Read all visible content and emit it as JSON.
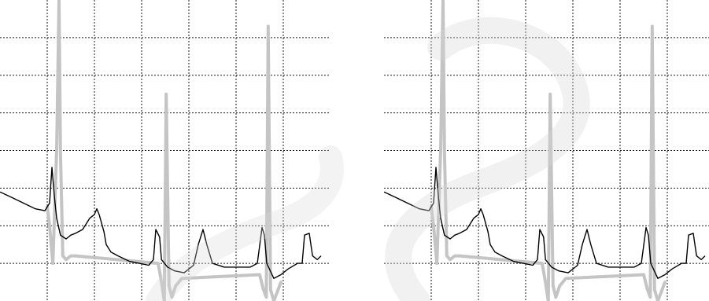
{
  "chart_data": [
    {
      "type": "line",
      "title": "",
      "xlabel": "",
      "ylabel": "",
      "grid": true,
      "grid_style": "dashed",
      "xlim": [
        0,
        7
      ],
      "ylim": [
        0,
        8
      ],
      "series": [
        {
          "color": "#000000",
          "x": [
            0,
            0.25,
            0.5,
            0.75,
            0.95,
            1.05,
            1.1,
            1.15,
            1.2,
            1.28,
            1.4,
            1.5,
            1.6,
            1.75,
            1.9,
            2.0,
            2.05,
            2.1,
            2.2,
            2.25,
            2.35,
            2.5,
            2.75,
            2.95,
            3.15,
            3.25,
            3.3,
            3.38,
            3.42,
            3.55,
            3.7,
            3.9,
            4.1,
            4.2,
            4.3,
            4.38,
            4.5,
            4.75,
            5.0,
            5.3,
            5.45,
            5.55,
            5.6,
            5.65,
            5.8,
            5.95,
            6.1,
            6.3,
            6.4,
            6.45,
            6.55,
            6.62,
            6.72,
            6.8
          ],
          "y": [
            2.9,
            2.75,
            2.6,
            2.45,
            2.4,
            2.6,
            3.55,
            2.8,
            2.2,
            1.75,
            1.65,
            1.75,
            1.8,
            1.9,
            2.2,
            2.3,
            2.45,
            2.3,
            1.85,
            1.5,
            1.3,
            1.2,
            1.05,
            1.0,
            0.95,
            1.1,
            1.9,
            1.7,
            1.1,
            0.9,
            0.8,
            0.75,
            0.95,
            1.5,
            1.9,
            1.5,
            1.0,
            0.9,
            0.9,
            0.9,
            1.0,
            1.95,
            1.75,
            1.0,
            0.6,
            0.7,
            0.85,
            1.0,
            1.0,
            1.75,
            1.8,
            1.2,
            1.1,
            1.2
          ]
        },
        {
          "color": "#c4c4c4",
          "x": [
            1.0,
            1.05,
            1.12,
            1.2,
            1.25,
            1.28,
            1.33,
            1.4,
            1.5,
            1.6,
            3.35,
            3.42,
            3.48,
            3.52,
            3.58,
            3.64,
            3.72,
            3.85,
            5.5,
            5.58,
            5.64,
            5.68,
            5.73,
            5.8,
            5.86,
            5.95
          ],
          "y": [
            2.5,
            2.0,
            1.0,
            4.0,
            8.0,
            4.0,
            1.2,
            1.1,
            1.2,
            1.2,
            1.0,
            0.5,
            0.0,
            5.5,
            0.4,
            0.1,
            0.4,
            0.6,
            0.7,
            0.3,
            0.1,
            7.3,
            0.3,
            0.0,
            0.2,
            0.5
          ]
        }
      ]
    },
    {
      "type": "line",
      "title": "",
      "xlabel": "",
      "ylabel": "",
      "grid": true,
      "grid_style": "dashed",
      "xlim": [
        0,
        7
      ],
      "ylim": [
        0,
        8
      ],
      "series": [
        {
          "color": "#000000",
          "x": [
            0,
            0.25,
            0.5,
            0.75,
            0.95,
            1.05,
            1.1,
            1.15,
            1.2,
            1.28,
            1.4,
            1.5,
            1.6,
            1.75,
            1.9,
            2.0,
            2.05,
            2.1,
            2.2,
            2.25,
            2.35,
            2.5,
            2.75,
            2.95,
            3.15,
            3.25,
            3.3,
            3.38,
            3.42,
            3.55,
            3.7,
            3.9,
            4.1,
            4.2,
            4.3,
            4.38,
            4.5,
            4.75,
            5.0,
            5.3,
            5.45,
            5.55,
            5.6,
            5.65,
            5.8,
            5.95,
            6.1,
            6.3,
            6.4,
            6.45,
            6.55,
            6.62,
            6.72,
            6.8
          ],
          "y": [
            2.9,
            2.75,
            2.6,
            2.45,
            2.4,
            2.6,
            3.55,
            2.8,
            2.2,
            1.75,
            1.65,
            1.75,
            1.8,
            1.9,
            2.2,
            2.3,
            2.45,
            2.3,
            1.85,
            1.5,
            1.3,
            1.2,
            1.05,
            1.0,
            0.95,
            1.1,
            1.9,
            1.7,
            1.1,
            0.9,
            0.8,
            0.75,
            0.95,
            1.5,
            1.9,
            1.5,
            1.0,
            0.9,
            0.9,
            0.9,
            1.0,
            1.95,
            1.75,
            1.0,
            0.6,
            0.7,
            0.85,
            1.0,
            1.0,
            1.75,
            1.8,
            1.2,
            1.1,
            1.2
          ]
        },
        {
          "color": "#c4c4c4",
          "x": [
            1.0,
            1.05,
            1.12,
            1.2,
            1.25,
            1.28,
            1.33,
            1.4,
            1.5,
            1.6,
            3.35,
            3.42,
            3.48,
            3.52,
            3.58,
            3.64,
            3.72,
            3.85,
            5.5,
            5.58,
            5.64,
            5.68,
            5.73,
            5.8,
            5.86,
            5.95
          ],
          "y": [
            2.5,
            2.0,
            1.0,
            4.0,
            8.0,
            4.0,
            1.2,
            1.1,
            1.2,
            1.2,
            1.0,
            0.5,
            0.0,
            5.5,
            0.4,
            0.1,
            0.4,
            0.6,
            0.7,
            0.3,
            0.1,
            7.3,
            0.3,
            0.0,
            0.2,
            0.5
          ]
        }
      ]
    }
  ]
}
